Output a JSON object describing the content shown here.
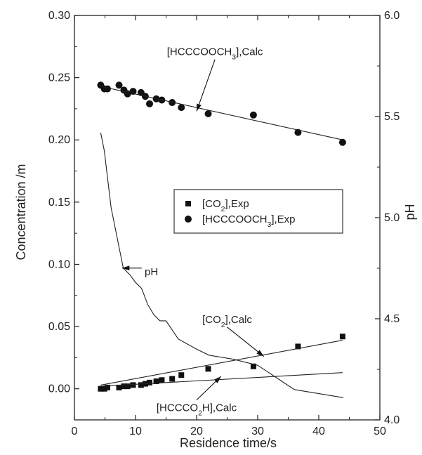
{
  "chart_data": {
    "type": "scatter",
    "xlabel": "Residence time/s",
    "ylabel": "Concentration /m",
    "y2label": "pH",
    "xlim": [
      0,
      50
    ],
    "ylim": [
      -0.025,
      0.3
    ],
    "y2lim": [
      4.0,
      6.0
    ],
    "xticks": [
      "0",
      "10",
      "20",
      "30",
      "40",
      "50"
    ],
    "yticks": [
      "0.00",
      "0.05",
      "0.10",
      "0.15",
      "0.20",
      "0.25",
      "0.30"
    ],
    "y2ticks": [
      "4.0",
      "4.5",
      "5.0",
      "5.5",
      "6.0"
    ],
    "grid": false,
    "legend_position": "center-right",
    "series": [
      {
        "name": "[CO2],Exp",
        "label_parts": [
          {
            "t": "[CO"
          },
          {
            "t": "2",
            "sub": true
          },
          {
            "t": "],Exp"
          }
        ],
        "marker": "square",
        "x": [
          4.3,
          4.9,
          5.4,
          7.3,
          8.1,
          8.7,
          9.6,
          10.9,
          11.6,
          12.3,
          13.4,
          14.3,
          16.0,
          17.5,
          21.9,
          29.3,
          36.6,
          43.9
        ],
        "y": [
          0.0,
          0.0,
          0.001,
          0.001,
          0.002,
          0.002,
          0.003,
          0.003,
          0.004,
          0.005,
          0.006,
          0.007,
          0.008,
          0.011,
          0.016,
          0.018,
          0.034,
          0.042
        ]
      },
      {
        "name": "[HCCCOOCH3],Exp",
        "label_parts": [
          {
            "t": "[HCCCOOCH"
          },
          {
            "t": "3",
            "sub": true
          },
          {
            "t": "],Exp"
          }
        ],
        "marker": "circle",
        "x": [
          4.3,
          4.9,
          5.4,
          7.3,
          8.1,
          8.7,
          9.6,
          10.9,
          11.6,
          12.3,
          13.4,
          14.3,
          16.0,
          17.5,
          21.9,
          29.3,
          36.6,
          43.9
        ],
        "y": [
          0.244,
          0.241,
          0.241,
          0.244,
          0.24,
          0.237,
          0.239,
          0.238,
          0.235,
          0.229,
          0.233,
          0.232,
          0.23,
          0.226,
          0.221,
          0.22,
          0.206,
          0.198
        ]
      },
      {
        "name": "[HCCCOOCH3],Calc",
        "label_parts": [
          {
            "t": "[HCCCOOCH"
          },
          {
            "t": "3",
            "sub": true
          },
          {
            "t": "],Calc"
          }
        ],
        "line": "solid",
        "x": [
          4.3,
          43.9
        ],
        "y": [
          0.243,
          0.2
        ]
      },
      {
        "name": "[CO2],Calc",
        "label_parts": [
          {
            "t": "[CO"
          },
          {
            "t": "2",
            "sub": true
          },
          {
            "t": "],Calc"
          }
        ],
        "line": "solid",
        "x": [
          4.3,
          43.9
        ],
        "y": [
          0.003,
          0.039
        ]
      },
      {
        "name": "[HCCCO2H],Calc",
        "label_parts": [
          {
            "t": "[HCCCO"
          },
          {
            "t": "2",
            "sub": true
          },
          {
            "t": "H],Calc"
          }
        ],
        "line": "solid",
        "x": [
          4.3,
          43.9
        ],
        "y": [
          0.002,
          0.013
        ]
      },
      {
        "name": "pH",
        "label_parts": [
          {
            "t": "pH"
          }
        ],
        "line": "solid",
        "axis": "right",
        "x": [
          4.3,
          4.9,
          6.0,
          7.0,
          8.0,
          9.0,
          10.0,
          11.0,
          12.0,
          13.0,
          14.0,
          15.0,
          17.0,
          20.0,
          22.0,
          26.0,
          30.0,
          33.0,
          36.0,
          40.0,
          44.0
        ],
        "y": [
          5.42,
          5.33,
          5.05,
          4.9,
          4.75,
          4.72,
          4.68,
          4.65,
          4.57,
          4.52,
          4.49,
          4.49,
          4.4,
          4.35,
          4.32,
          4.3,
          4.27,
          4.21,
          4.15,
          4.13,
          4.11
        ]
      }
    ],
    "annotations": [
      {
        "series": 2,
        "text_x": 23.0,
        "text_y": 0.268,
        "arrow_to": [
          20.0,
          0.223
        ]
      },
      {
        "series": 5,
        "text_x": 11.5,
        "text_y": 0.094,
        "arrow_from": [
          11.0,
          0.097
        ],
        "arrow_to": [
          7.8,
          0.097
        ]
      },
      {
        "series": 3,
        "text_x": 25.0,
        "text_y": 0.053,
        "arrow_to": [
          31.0,
          0.026
        ]
      },
      {
        "series": 4,
        "text_x": 20.0,
        "text_y": -0.018,
        "arrow_to": [
          24.0,
          0.01
        ]
      }
    ]
  }
}
